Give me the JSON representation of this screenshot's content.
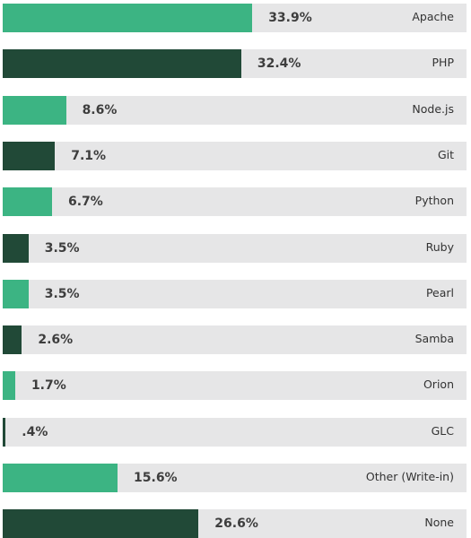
{
  "chart_data": {
    "type": "bar",
    "orientation": "horizontal",
    "categories": [
      "Apache",
      "PHP",
      "Node.js",
      "Git",
      "Python",
      "Ruby",
      "Pearl",
      "Samba",
      "Orion",
      "GLC",
      "Other (Write-in)",
      "None"
    ],
    "values": [
      33.9,
      32.4,
      8.6,
      7.1,
      6.7,
      3.5,
      3.5,
      2.6,
      1.7,
      0.4,
      15.6,
      26.6
    ],
    "value_labels": [
      "33.9%",
      "32.4%",
      "8.6%",
      "7.1%",
      "6.7%",
      "3.5%",
      "3.5%",
      "2.6%",
      "1.7%",
      ".4%",
      "15.6%",
      "26.6%"
    ],
    "xlim": [
      0,
      63
    ],
    "grid": false,
    "legend": "none",
    "colors": {
      "light": "#3cb483",
      "dark": "#214937",
      "track": "#e6e6e7",
      "value_text": "#3d3d3d",
      "category_text": "#333333"
    }
  }
}
